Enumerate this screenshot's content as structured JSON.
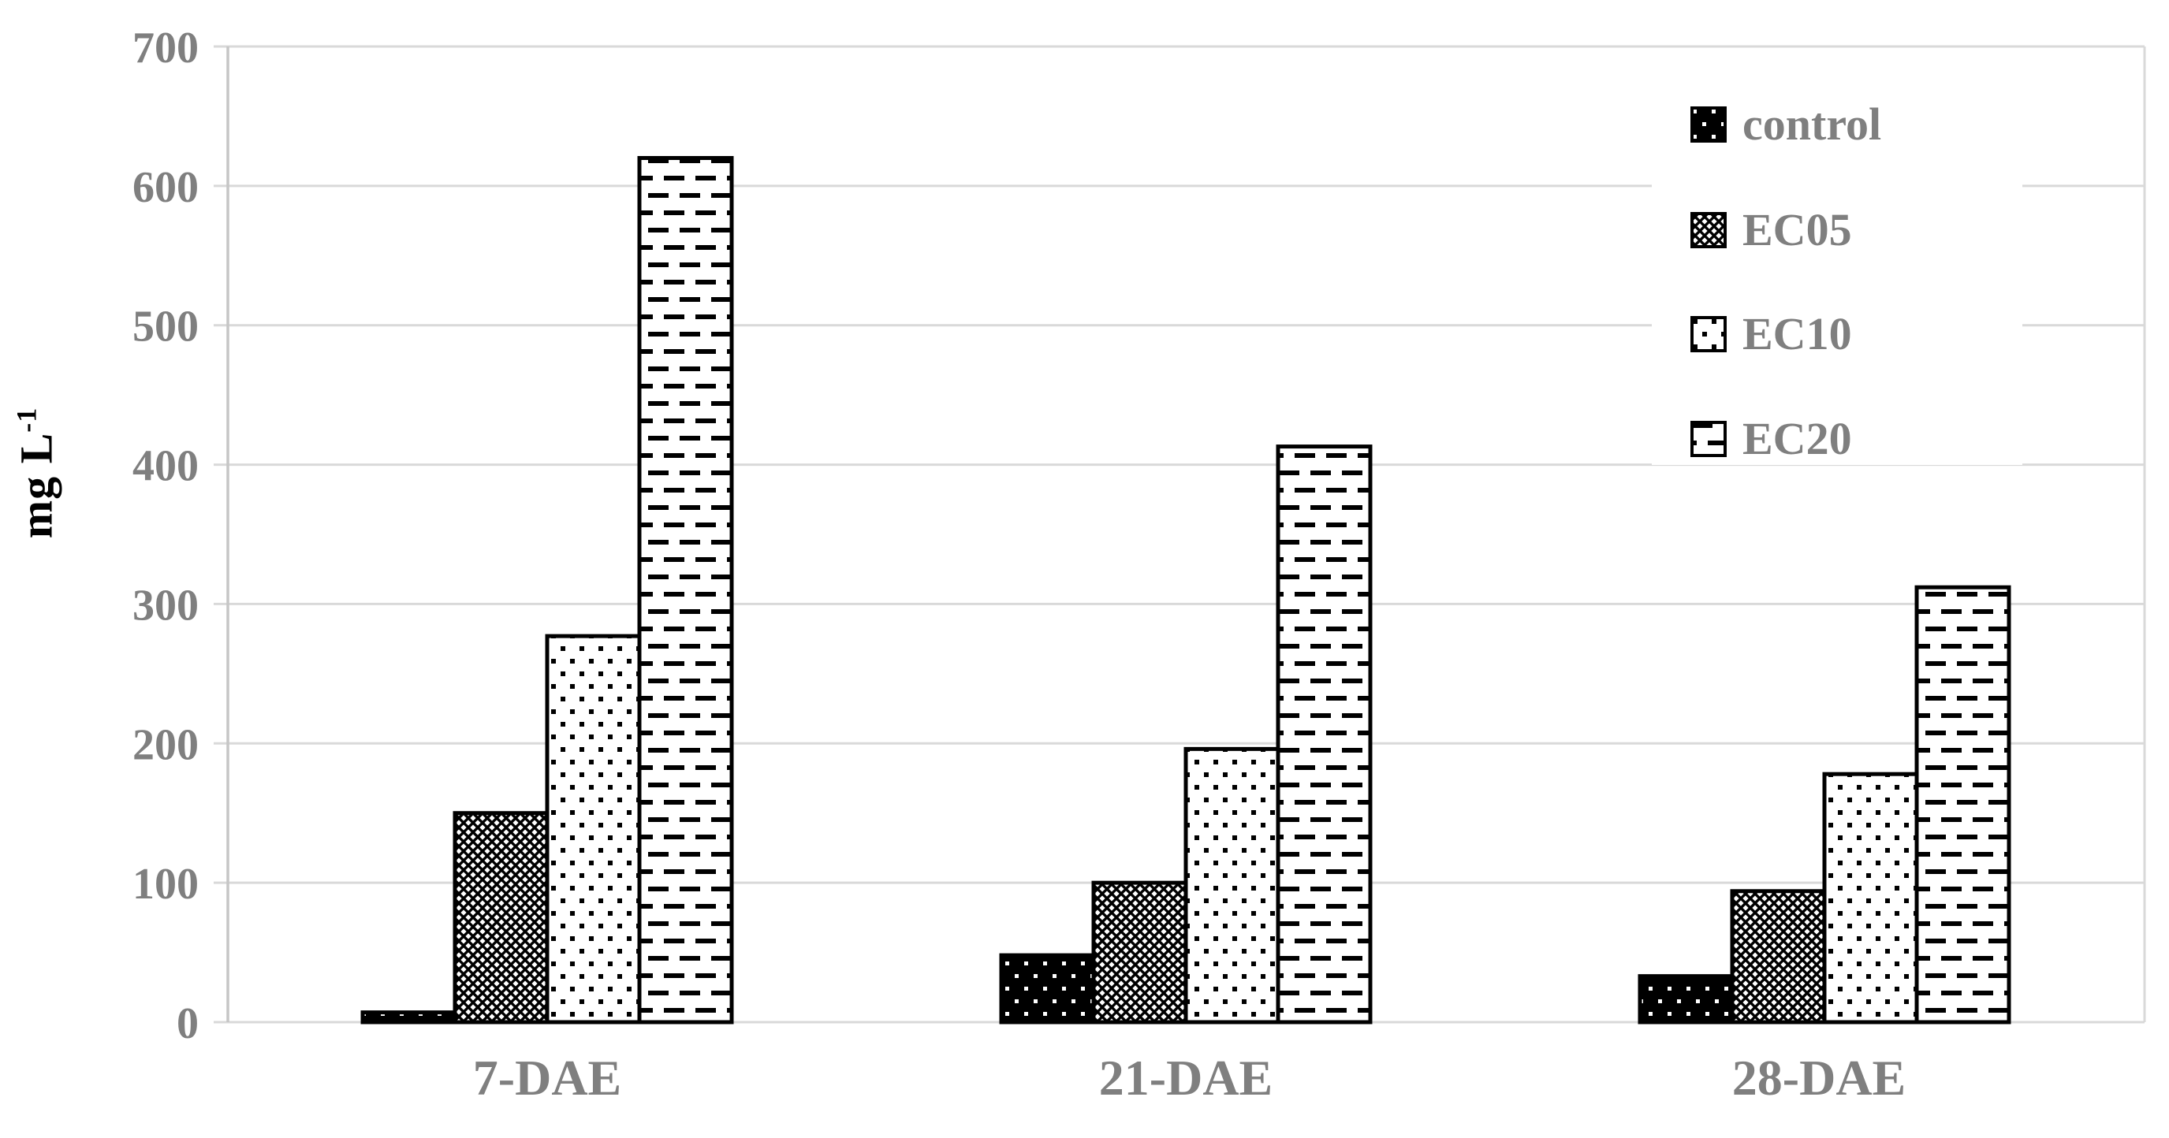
{
  "chart_data": {
    "type": "bar",
    "title": "",
    "categories": [
      "7-DAE",
      "21-DAE",
      "28-DAE"
    ],
    "series": [
      {
        "name": "control",
        "pattern": "white-dots-on-black",
        "values": [
          7,
          48,
          33
        ]
      },
      {
        "name": "EC05",
        "pattern": "diagonal-crosshatch",
        "values": [
          150,
          100,
          94
        ]
      },
      {
        "name": "EC10",
        "pattern": "black-dots-on-white",
        "values": [
          277,
          196,
          178
        ]
      },
      {
        "name": "EC20",
        "pattern": "horizontal-dashes",
        "values": [
          620,
          413,
          312
        ]
      }
    ],
    "xlabel": "",
    "ylabel": "mg L⁻¹",
    "ylabel_parts": {
      "text": "mg L",
      "sup": "-1"
    },
    "yticks": [
      0,
      100,
      200,
      300,
      400,
      500,
      600,
      700
    ],
    "ylim": [
      0,
      700
    ],
    "grid": "horizontal-gridlines",
    "legend_position": "upper-right"
  },
  "colors": {
    "label_gray": "#7f7f7f",
    "gridline": "#d9d9d9",
    "axis_line": "#c6c6c6",
    "bar_border": "#000000",
    "bar_fill_bg": "#ffffff",
    "background": "#ffffff"
  }
}
